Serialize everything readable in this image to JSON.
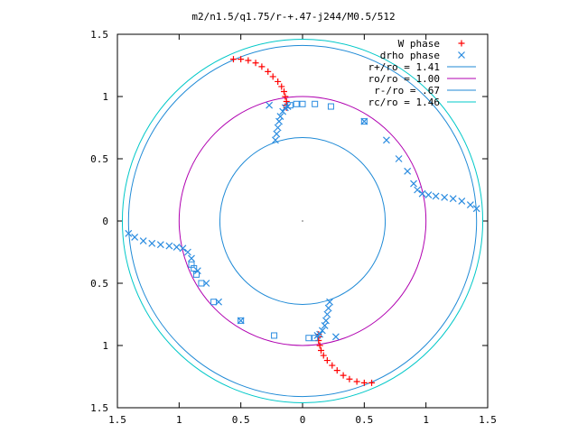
{
  "chart_data": {
    "type": "scatter",
    "title": "m2/n1.5/q1.75/r-+.47-j244/M0.5/512",
    "xlabel": "",
    "ylabel": "",
    "xlim": [
      -1.5,
      1.5
    ],
    "ylim": [
      -1.5,
      1.5
    ],
    "x_ticks": [
      -1.5,
      -1,
      -0.5,
      0,
      0.5,
      1,
      1.5
    ],
    "y_ticks": [
      -1.5,
      -1,
      -0.5,
      0,
      0.5,
      1,
      1.5
    ],
    "x_tick_labels": [
      "1.5",
      "1",
      "0.5",
      "0",
      "0.5",
      "1",
      "1.5"
    ],
    "y_tick_labels": [
      "1.5",
      "1",
      "0.5",
      "0",
      "0.5",
      "1",
      "1.5"
    ],
    "grid": false,
    "legend_position": "top-right",
    "colors": {
      "w_phase": "#ff0000",
      "drho_phase": "#2b8ce0",
      "r_plus": "#1f8ad6",
      "ro": "#b000b0",
      "r_minus": "#1f8ad6",
      "rc": "#00c8c8"
    },
    "series": [
      {
        "name": "W phase",
        "kind": "points",
        "marker": "plus",
        "color": "#ff0000",
        "x": [
          -0.56,
          -0.5,
          -0.44,
          -0.38,
          -0.33,
          -0.28,
          -0.24,
          -0.2,
          -0.17,
          -0.15,
          -0.14,
          -0.13,
          -0.13,
          -0.13,
          0.13,
          0.13,
          0.13,
          0.14,
          0.15,
          0.17,
          0.2,
          0.24,
          0.28,
          0.33,
          0.38,
          0.44,
          0.5,
          0.56
        ],
        "y": [
          1.3,
          1.3,
          1.29,
          1.27,
          1.24,
          1.2,
          1.16,
          1.12,
          1.08,
          1.04,
          1.0,
          0.96,
          0.93,
          0.91,
          -0.91,
          -0.93,
          -0.96,
          -1.0,
          -1.04,
          -1.08,
          -1.12,
          -1.16,
          -1.2,
          -1.24,
          -1.27,
          -1.29,
          -1.3,
          -1.3
        ]
      },
      {
        "name": "drho phase",
        "kind": "points",
        "marker": "x",
        "color": "#2b8ce0",
        "x": [
          -0.22,
          -0.21,
          -0.2,
          -0.19,
          -0.18,
          -0.16,
          -0.14,
          -0.12,
          0.22,
          0.21,
          0.2,
          0.19,
          0.18,
          0.16,
          0.14,
          0.12,
          0.78,
          0.85,
          0.9,
          0.93,
          0.97,
          1.02,
          1.08,
          1.15,
          1.22,
          1.29,
          1.36,
          1.41,
          -0.78,
          -0.85,
          -0.9,
          -0.93,
          -0.97,
          -1.02,
          -1.08,
          -1.15,
          -1.22,
          -1.29,
          -1.36,
          -1.41,
          0.68,
          -0.68,
          -0.27,
          0.27,
          -0.5,
          0.5
        ],
        "y": [
          0.65,
          0.7,
          0.75,
          0.8,
          0.84,
          0.88,
          0.91,
          0.92,
          -0.65,
          -0.7,
          -0.75,
          -0.8,
          -0.84,
          -0.88,
          -0.91,
          -0.92,
          0.5,
          0.4,
          0.3,
          0.25,
          0.22,
          0.21,
          0.2,
          0.19,
          0.18,
          0.16,
          0.13,
          0.1,
          -0.5,
          -0.4,
          -0.3,
          -0.25,
          -0.22,
          -0.21,
          -0.2,
          -0.19,
          -0.18,
          -0.16,
          -0.13,
          -0.1,
          0.65,
          -0.65,
          0.93,
          -0.93,
          -0.8,
          0.8
        ]
      },
      {
        "name": "",
        "kind": "points",
        "marker": "square",
        "color": "#2b8ce0",
        "x": [
          -0.1,
          -0.05,
          0.0,
          0.1,
          0.23,
          0.5,
          -0.72,
          -0.82,
          -0.86,
          -0.88,
          -0.9,
          0.1,
          0.05,
          -0.23,
          -0.5
        ],
        "y": [
          0.93,
          0.94,
          0.94,
          0.94,
          0.92,
          0.8,
          -0.65,
          -0.5,
          -0.43,
          -0.38,
          -0.35,
          -0.94,
          -0.94,
          -0.92,
          -0.8
        ]
      },
      {
        "name": "r+/ro = 1.41",
        "kind": "circle",
        "radius": 1.41,
        "color": "#1f8ad6"
      },
      {
        "name": "ro/ro = 1.00",
        "kind": "circle",
        "radius": 1.0,
        "color": "#b000b0"
      },
      {
        "name": "r-/ro = .67",
        "kind": "circle",
        "radius": 0.67,
        "color": "#1f8ad6"
      },
      {
        "name": "rc/ro = 1.46",
        "kind": "circle",
        "radius": 1.46,
        "color": "#00c8c8"
      }
    ]
  }
}
